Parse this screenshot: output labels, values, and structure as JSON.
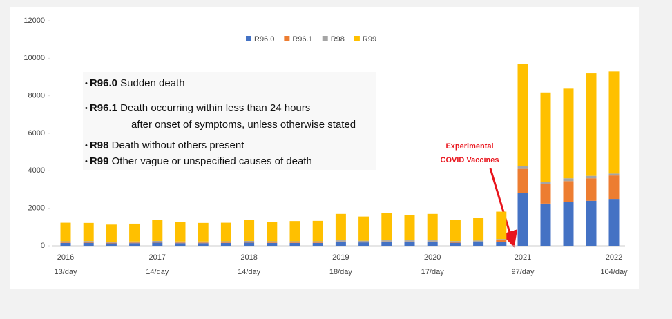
{
  "chart_data": {
    "type": "stacked-bar",
    "categories": [
      "2016",
      null,
      null,
      null,
      "2017",
      null,
      null,
      null,
      "2018",
      null,
      null,
      null,
      "2019",
      null,
      null,
      null,
      "2020",
      null,
      null,
      null,
      "2021",
      null,
      null,
      null,
      "2022"
    ],
    "daily_rates": [
      "13/day",
      null,
      null,
      null,
      "14/day",
      null,
      null,
      null,
      "14/day",
      null,
      null,
      null,
      "18/day",
      null,
      null,
      null,
      "17/day",
      null,
      null,
      null,
      "97/day",
      null,
      null,
      null,
      "104/day"
    ],
    "series": [
      {
        "name": "R96.0",
        "color": "#4472c4",
        "values": [
          150,
          160,
          130,
          140,
          170,
          140,
          140,
          150,
          170,
          150,
          150,
          150,
          200,
          180,
          200,
          200,
          200,
          160,
          190,
          220,
          2800,
          2250,
          2350,
          2400,
          2500
        ]
      },
      {
        "name": "R96.1",
        "color": "#ed7d31",
        "values": [
          30,
          30,
          30,
          30,
          30,
          30,
          30,
          30,
          30,
          30,
          30,
          30,
          30,
          30,
          30,
          30,
          30,
          30,
          30,
          80,
          1300,
          1050,
          1100,
          1200,
          1250
        ]
      },
      {
        "name": "R98",
        "color": "#a5a5a5",
        "values": [
          60,
          60,
          60,
          60,
          60,
          60,
          60,
          60,
          60,
          60,
          60,
          60,
          60,
          60,
          60,
          60,
          60,
          60,
          60,
          60,
          150,
          120,
          150,
          130,
          100
        ]
      },
      {
        "name": "R99",
        "color": "#ffc000",
        "values": [
          990,
          970,
          910,
          950,
          1110,
          1050,
          990,
          990,
          1130,
          1030,
          1080,
          1090,
          1410,
          1290,
          1450,
          1360,
          1410,
          1130,
          1220,
          1460,
          5450,
          4760,
          4780,
          5470,
          5450
        ]
      }
    ],
    "ylim": [
      0,
      12000
    ],
    "yticks": [
      0,
      2000,
      4000,
      6000,
      8000,
      10000,
      12000
    ],
    "legend": "top",
    "notes": [
      {
        "code": "R96.0",
        "text": [
          "Sudden death"
        ]
      },
      {
        "code": "R96.1",
        "text": [
          "Death occurring within less than 24 hours",
          "after onset of symptoms, unless otherwise stated"
        ]
      },
      {
        "code": "R98",
        "text": [
          "Death without others present"
        ]
      },
      {
        "code": "R99",
        "text": [
          "Other vague or unspecified causes of death"
        ]
      }
    ],
    "annotation": {
      "lines": [
        "Experimental",
        "COVID Vaccines"
      ],
      "color": "#e8141c"
    }
  }
}
